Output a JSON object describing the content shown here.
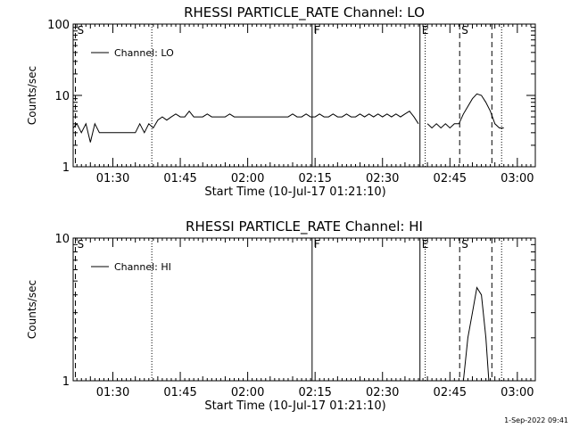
{
  "chart_data": [
    {
      "type": "line",
      "title": "RHESSI PARTICLE_RATE Channel: LO",
      "xlabel": "Start Time (10-Jul-17 01:21:10)",
      "ylabel": "Counts/sec",
      "yscale": "log",
      "ylim": [
        1,
        100
      ],
      "xlim": [
        "01:21:10",
        "03:04:00"
      ],
      "x_ticks": [
        "01:30",
        "01:45",
        "02:00",
        "02:15",
        "02:30",
        "02:45",
        "03:00"
      ],
      "y_ticks": [
        "1",
        "10",
        "100"
      ],
      "legend": {
        "position": "top-left",
        "entries": [
          "Channel: LO"
        ]
      },
      "markers": [
        {
          "label": "S",
          "time": "01:21:40",
          "style": "dashed"
        },
        {
          "label": "",
          "time": "01:38:40",
          "style": "dotted"
        },
        {
          "label": "F",
          "time": "02:14:20",
          "style": "solid"
        },
        {
          "label": "E",
          "time": "02:38:20",
          "style": "solid"
        },
        {
          "label": "",
          "time": "02:39:30",
          "style": "dotted"
        },
        {
          "label": "S",
          "time": "02:47:10",
          "style": "dashed"
        },
        {
          "label": "",
          "time": "02:54:20",
          "style": "dashed"
        },
        {
          "label": "",
          "time": "02:56:30",
          "style": "dotted"
        }
      ],
      "series": [
        {
          "name": "Channel: LO",
          "segments": [
            [
              [
                "01:21:10",
                3.5
              ],
              [
                "01:22:00",
                4
              ],
              [
                "01:23:00",
                3
              ],
              [
                "01:24:00",
                4
              ],
              [
                "01:25:00",
                2.2
              ],
              [
                "01:26:00",
                4
              ],
              [
                "01:27:00",
                3
              ],
              [
                "01:28:00",
                3
              ],
              [
                "01:29:00",
                3
              ],
              [
                "01:30:00",
                3
              ],
              [
                "01:31:00",
                3
              ],
              [
                "01:32:00",
                3
              ],
              [
                "01:33:00",
                3
              ],
              [
                "01:34:00",
                3
              ],
              [
                "01:35:00",
                3
              ],
              [
                "01:36:00",
                4
              ],
              [
                "01:37:00",
                3
              ],
              [
                "01:38:00",
                4
              ],
              [
                "01:39:00",
                3.5
              ],
              [
                "01:40:00",
                4.5
              ],
              [
                "01:41:00",
                5
              ],
              [
                "01:42:00",
                4.5
              ],
              [
                "01:43:00",
                5
              ],
              [
                "01:44:00",
                5.5
              ],
              [
                "01:45:00",
                5
              ],
              [
                "01:46:00",
                5
              ],
              [
                "01:47:00",
                6
              ],
              [
                "01:48:00",
                5
              ],
              [
                "01:49:00",
                5
              ],
              [
                "01:50:00",
                5
              ],
              [
                "01:51:00",
                5.5
              ],
              [
                "01:52:00",
                5
              ],
              [
                "01:53:00",
                5
              ],
              [
                "01:54:00",
                5
              ],
              [
                "01:55:00",
                5
              ],
              [
                "01:56:00",
                5.5
              ],
              [
                "01:57:00",
                5
              ],
              [
                "01:58:00",
                5
              ],
              [
                "01:59:00",
                5
              ],
              [
                "02:00:00",
                5
              ],
              [
                "02:01:00",
                5
              ],
              [
                "02:02:00",
                5
              ],
              [
                "02:03:00",
                5
              ],
              [
                "02:04:00",
                5
              ],
              [
                "02:05:00",
                5
              ],
              [
                "02:06:00",
                5
              ],
              [
                "02:07:00",
                5
              ],
              [
                "02:08:00",
                5
              ],
              [
                "02:09:00",
                5
              ],
              [
                "02:10:00",
                5.5
              ],
              [
                "02:11:00",
                5
              ],
              [
                "02:12:00",
                5
              ],
              [
                "02:13:00",
                5.5
              ],
              [
                "02:14:00",
                5
              ],
              [
                "02:15:00",
                5
              ],
              [
                "02:16:00",
                5.5
              ],
              [
                "02:17:00",
                5
              ],
              [
                "02:18:00",
                5
              ],
              [
                "02:19:00",
                5.5
              ],
              [
                "02:20:00",
                5
              ],
              [
                "02:21:00",
                5
              ],
              [
                "02:22:00",
                5.5
              ],
              [
                "02:23:00",
                5
              ],
              [
                "02:24:00",
                5
              ],
              [
                "02:25:00",
                5.5
              ],
              [
                "02:26:00",
                5
              ],
              [
                "02:27:00",
                5.5
              ],
              [
                "02:28:00",
                5
              ],
              [
                "02:29:00",
                5.5
              ],
              [
                "02:30:00",
                5
              ],
              [
                "02:31:00",
                5.5
              ],
              [
                "02:32:00",
                5
              ],
              [
                "02:33:00",
                5.5
              ],
              [
                "02:34:00",
                5
              ],
              [
                "02:35:00",
                5.5
              ],
              [
                "02:36:00",
                6
              ],
              [
                "02:37:00",
                5
              ],
              [
                "02:38:00",
                4
              ]
            ],
            [
              [
                "02:40:00",
                4
              ],
              [
                "02:41:00",
                3.5
              ],
              [
                "02:42:00",
                4
              ],
              [
                "02:43:00",
                3.5
              ],
              [
                "02:44:00",
                4
              ],
              [
                "02:45:00",
                3.5
              ],
              [
                "02:46:00",
                4
              ],
              [
                "02:47:00",
                4
              ],
              [
                "02:48:00",
                5.5
              ],
              [
                "02:49:00",
                7
              ],
              [
                "02:50:00",
                9
              ],
              [
                "02:51:00",
                10.5
              ],
              [
                "02:52:00",
                10
              ],
              [
                "02:53:00",
                8
              ],
              [
                "02:54:00",
                6
              ],
              [
                "02:55:00",
                4
              ],
              [
                "02:56:00",
                3.5
              ],
              [
                "02:57:00",
                3.5
              ]
            ]
          ]
        }
      ]
    },
    {
      "type": "line",
      "title": "RHESSI PARTICLE_RATE Channel: HI",
      "xlabel": "Start Time (10-Jul-17 01:21:10)",
      "ylabel": "Counts/sec",
      "yscale": "log",
      "ylim": [
        1,
        10
      ],
      "xlim": [
        "01:21:10",
        "03:04:00"
      ],
      "x_ticks": [
        "01:30",
        "01:45",
        "02:00",
        "02:15",
        "02:30",
        "02:45",
        "03:00"
      ],
      "y_ticks": [
        "1",
        "10"
      ],
      "legend": {
        "position": "top-left",
        "entries": [
          "Channel: HI"
        ]
      },
      "markers": [
        {
          "label": "S",
          "time": "01:21:40",
          "style": "dashed"
        },
        {
          "label": "",
          "time": "01:38:40",
          "style": "dotted"
        },
        {
          "label": "F",
          "time": "02:14:20",
          "style": "solid"
        },
        {
          "label": "E",
          "time": "02:38:20",
          "style": "solid"
        },
        {
          "label": "",
          "time": "02:39:30",
          "style": "dotted"
        },
        {
          "label": "S",
          "time": "02:47:10",
          "style": "dashed"
        },
        {
          "label": "",
          "time": "02:54:20",
          "style": "dashed"
        },
        {
          "label": "",
          "time": "02:56:30",
          "style": "dotted"
        }
      ],
      "series": [
        {
          "name": "Channel: HI",
          "segments": [
            [
              [
                "02:48:00",
                1
              ],
              [
                "02:49:00",
                2
              ],
              [
                "02:50:00",
                3
              ],
              [
                "02:51:00",
                4.5
              ],
              [
                "02:52:00",
                4
              ],
              [
                "02:53:00",
                2
              ],
              [
                "02:53:40",
                1
              ]
            ]
          ]
        }
      ]
    }
  ],
  "footer": {
    "timestamp": "1-Sep-2022 09:41"
  }
}
